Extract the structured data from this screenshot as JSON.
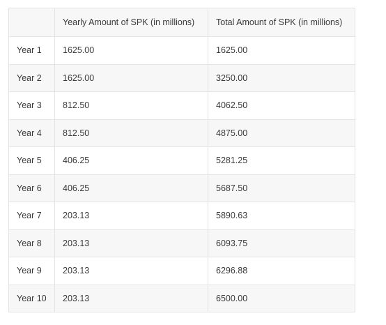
{
  "table": {
    "headers": [
      "",
      "Yearly Amount of SPK (in millions)",
      "Total Amount of SPK (in millions)"
    ],
    "rows": [
      [
        "Year 1",
        "1625.00",
        "1625.00"
      ],
      [
        "Year 2",
        "1625.00",
        "3250.00"
      ],
      [
        "Year 3",
        "812.50",
        "4062.50"
      ],
      [
        "Year 4",
        "812.50",
        "4875.00"
      ],
      [
        "Year 5",
        "406.25",
        "5281.25"
      ],
      [
        "Year 6",
        "406.25",
        "5687.50"
      ],
      [
        "Year 7",
        "203.13",
        "5890.63"
      ],
      [
        "Year 8",
        "203.13",
        "6093.75"
      ],
      [
        "Year 9",
        "203.13",
        "6296.88"
      ],
      [
        "Year 10",
        "203.13",
        "6500.00"
      ]
    ]
  }
}
